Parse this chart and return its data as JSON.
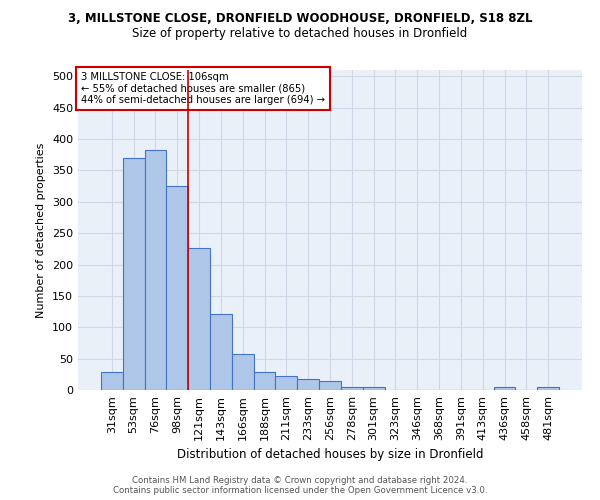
{
  "title": "3, MILLSTONE CLOSE, DRONFIELD WOODHOUSE, DRONFIELD, S18 8ZL",
  "subtitle": "Size of property relative to detached houses in Dronfield",
  "xlabel": "Distribution of detached houses by size in Dronfield",
  "ylabel": "Number of detached properties",
  "footer_line1": "Contains HM Land Registry data © Crown copyright and database right 2024.",
  "footer_line2": "Contains public sector information licensed under the Open Government Licence v3.0.",
  "categories": [
    "31sqm",
    "53sqm",
    "76sqm",
    "98sqm",
    "121sqm",
    "143sqm",
    "166sqm",
    "188sqm",
    "211sqm",
    "233sqm",
    "256sqm",
    "278sqm",
    "301sqm",
    "323sqm",
    "346sqm",
    "368sqm",
    "391sqm",
    "413sqm",
    "436sqm",
    "458sqm",
    "481sqm"
  ],
  "values": [
    28,
    370,
    383,
    325,
    227,
    121,
    58,
    28,
    22,
    17,
    15,
    5,
    5,
    0,
    0,
    0,
    0,
    0,
    5,
    0,
    5
  ],
  "bar_color": "#aec6e8",
  "bar_edge_color": "#4472c4",
  "grid_color": "#d0d8e8",
  "bg_color": "#eaf0f8",
  "vline_x": 3.5,
  "vline_color": "#cc0000",
  "annotation_text": "3 MILLSTONE CLOSE: 106sqm\n← 55% of detached houses are smaller (865)\n44% of semi-detached houses are larger (694) →",
  "annotation_box_color": "white",
  "annotation_edge_color": "#cc0000",
  "ylim": [
    0,
    510
  ],
  "yticks": [
    0,
    50,
    100,
    150,
    200,
    250,
    300,
    350,
    400,
    450,
    500
  ]
}
